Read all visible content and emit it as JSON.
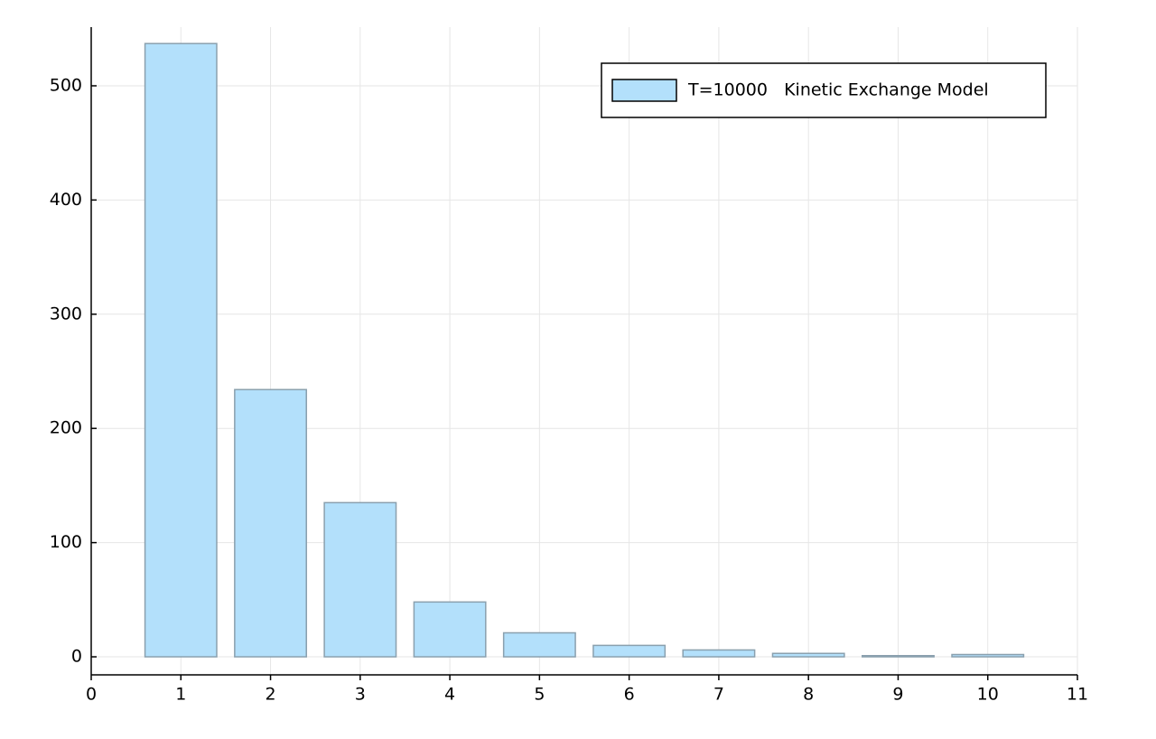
{
  "chart_data": {
    "type": "bar",
    "x": [
      1,
      2,
      3,
      4,
      5,
      6,
      7,
      8,
      9,
      10
    ],
    "series": [
      {
        "name": "T=10000   Kinetic Exchange Model",
        "color": "#b3e0fb",
        "values": [
          537,
          234,
          135,
          48,
          21,
          10,
          6,
          3,
          1,
          2
        ]
      }
    ],
    "xlim": [
      0,
      11
    ],
    "xticks": [
      0,
      1,
      2,
      3,
      4,
      5,
      6,
      7,
      8,
      9,
      10,
      11
    ],
    "ylim": [
      -15.8,
      551.4
    ],
    "yticks": [
      0,
      100,
      200,
      300,
      400,
      500
    ],
    "grid": true,
    "legend": "top-right"
  }
}
